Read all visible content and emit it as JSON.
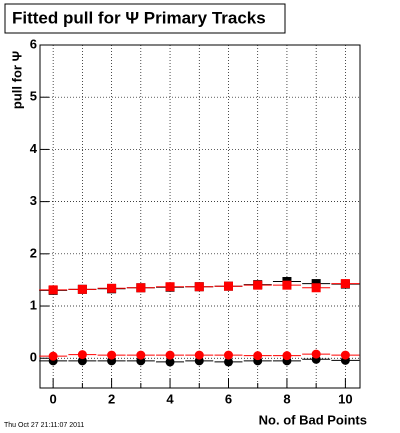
{
  "chart_data": {
    "type": "scatter",
    "title": "Fitted pull for Ψ  Primary Tracks",
    "x_label": "No. of Bad Points",
    "y_label": "pull for Ψ",
    "timestamp": "Thu Oct 27 21:11:07 2011",
    "x": [
      0,
      1,
      2,
      3,
      4,
      5,
      6,
      7,
      8,
      9,
      10
    ],
    "series": [
      {
        "color": "#000000",
        "marker": "square",
        "values": [
          1.3,
          1.32,
          1.33,
          1.35,
          1.36,
          1.37,
          1.38,
          1.41,
          1.47,
          1.43,
          1.42
        ]
      },
      {
        "color": "#ff0000",
        "marker": "square",
        "values": [
          1.31,
          1.32,
          1.34,
          1.35,
          1.37,
          1.37,
          1.38,
          1.4,
          1.4,
          1.35,
          1.43
        ]
      },
      {
        "color": "#000000",
        "marker": "circle",
        "values": [
          -0.05,
          -0.05,
          -0.05,
          -0.05,
          -0.07,
          -0.05,
          -0.07,
          -0.05,
          -0.05,
          -0.02,
          -0.04
        ]
      },
      {
        "color": "#ff0000",
        "marker": "circle",
        "values": [
          0.04,
          0.07,
          0.06,
          0.06,
          0.06,
          0.06,
          0.06,
          0.05,
          0.05,
          0.08,
          0.06
        ]
      }
    ],
    "xlim": [
      -0.45,
      10.5
    ],
    "xticks": [
      0,
      2,
      4,
      6,
      8,
      10
    ],
    "xminor": [
      1,
      3,
      5,
      7,
      9
    ],
    "ylim": [
      -0.57,
      6
    ],
    "yticks": [
      0,
      1,
      2,
      3,
      4,
      5,
      6
    ],
    "grid": true
  }
}
